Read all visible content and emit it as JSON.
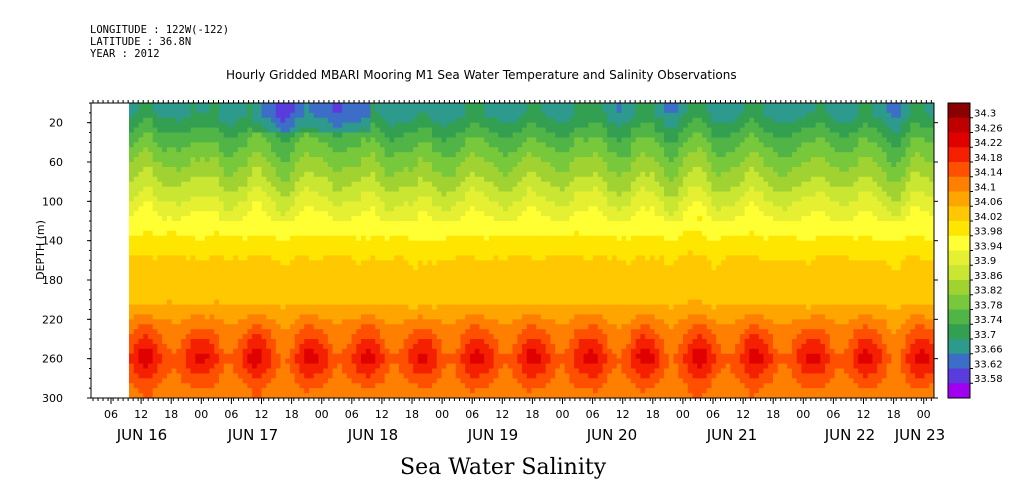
{
  "header": {
    "longitude": "LONGITUDE : 122W(-122)",
    "latitude": "LATITUDE : 36.8N",
    "year": "YEAR : 2012",
    "title": "Hourly Gridded MBARI Mooring M1 Sea Water Temperature and Salinity Observations"
  },
  "footer": {
    "variable": "Sea Water Salinity"
  },
  "chart_data": {
    "type": "heatmap",
    "title": "Hourly Gridded MBARI Mooring M1 Sea Water Temperature and Salinity Observations",
    "variable": "Sea Water Salinity",
    "xlabel": "",
    "ylabel": "DEPTH (m)",
    "ylim": [
      300,
      0
    ],
    "y_ticks": [
      20,
      60,
      100,
      140,
      180,
      220,
      260,
      300
    ],
    "x_tick_labels": [
      "06",
      "12",
      "18",
      "00",
      "06",
      "12",
      "18",
      "00",
      "06",
      "12",
      "18",
      "00",
      "06",
      "12",
      "18",
      "00",
      "06",
      "12",
      "18",
      "00",
      "06",
      "12",
      "18",
      "00",
      "06",
      "12",
      "18",
      "00"
    ],
    "x_date_labels": [
      "JUN 16",
      "JUN 17",
      "JUN 18",
      "JUN 19",
      "JUN 20",
      "JUN 21",
      "JUN 22",
      "JUN 23"
    ],
    "colorbar_levels": [
      "34.3",
      "34.26",
      "34.22",
      "34.18",
      "34.14",
      "34.1",
      "34.06",
      "34.02",
      "33.98",
      "33.94",
      "33.9",
      "33.86",
      "33.82",
      "33.78",
      "33.74",
      "33.7",
      "33.66",
      "33.62",
      "33.58"
    ],
    "colorbar_colors": [
      "#8b0000",
      "#c00000",
      "#e00000",
      "#f52000",
      "#ff5000",
      "#ff7f00",
      "#ffa500",
      "#ffc800",
      "#ffe600",
      "#ffff33",
      "#e6f032",
      "#c8e632",
      "#a0d232",
      "#78c83c",
      "#50b446",
      "#32a050",
      "#2d9a8c",
      "#3c6ec8",
      "#5a3cdc",
      "#a000f0"
    ],
    "depth_profile_typical": [
      {
        "depth": 10,
        "salinity": 33.72
      },
      {
        "depth": 40,
        "salinity": 33.8
      },
      {
        "depth": 80,
        "salinity": 33.88
      },
      {
        "depth": 120,
        "salinity": 33.97
      },
      {
        "depth": 160,
        "salinity": 34.04
      },
      {
        "depth": 200,
        "salinity": 34.06
      },
      {
        "depth": 230,
        "salinity": 34.14
      },
      {
        "depth": 260,
        "salinity": 34.2
      },
      {
        "depth": 290,
        "salinity": 34.14
      }
    ]
  }
}
